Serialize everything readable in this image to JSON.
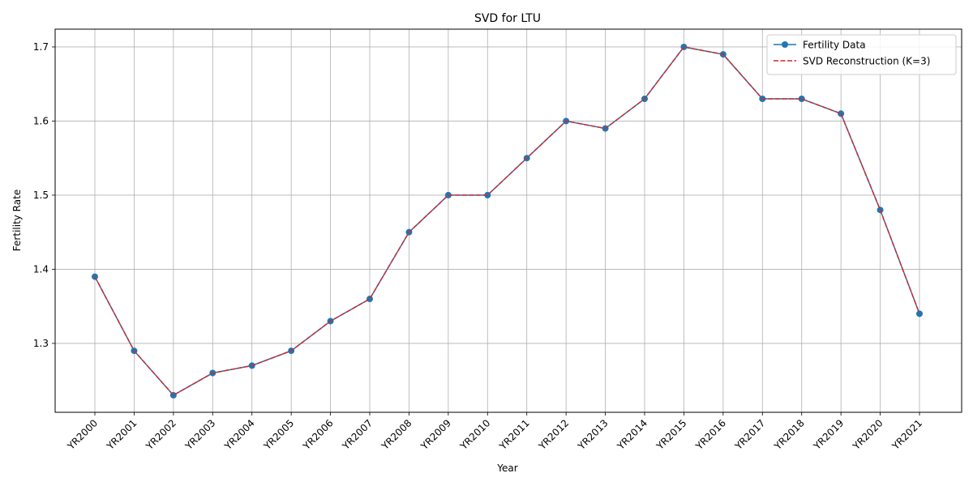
{
  "chart_data": {
    "type": "line",
    "title": "SVD for LTU",
    "xlabel": "Year",
    "ylabel": "Fertility Rate",
    "categories": [
      "YR2000",
      "YR2001",
      "YR2002",
      "YR2003",
      "YR2004",
      "YR2005",
      "YR2006",
      "YR2007",
      "YR2008",
      "YR2009",
      "YR2010",
      "YR2011",
      "YR2012",
      "YR2013",
      "YR2014",
      "YR2015",
      "YR2016",
      "YR2017",
      "YR2018",
      "YR2019",
      "YR2020",
      "YR2021"
    ],
    "ylim": [
      1.207,
      1.724
    ],
    "yticks": [
      1.3,
      1.4,
      1.5,
      1.6,
      1.7
    ],
    "ytick_labels": [
      "1.3",
      "1.4",
      "1.5",
      "1.6",
      "1.7"
    ],
    "grid": true,
    "legend_position": "top-right",
    "series": [
      {
        "name": "Fertility Data",
        "style": "solid-line-circle-markers",
        "color": "#1f77b4",
        "values": [
          1.39,
          1.29,
          1.23,
          1.26,
          1.27,
          1.29,
          1.33,
          1.36,
          1.45,
          1.5,
          1.5,
          1.55,
          1.6,
          1.59,
          1.63,
          1.7,
          1.69,
          1.63,
          1.63,
          1.61,
          1.48,
          1.34
        ]
      },
      {
        "name": "SVD Reconstruction (K=3)",
        "style": "dashed-line",
        "color": "#d62728",
        "values": [
          1.39,
          1.29,
          1.23,
          1.26,
          1.27,
          1.29,
          1.33,
          1.36,
          1.45,
          1.5,
          1.5,
          1.55,
          1.6,
          1.59,
          1.63,
          1.7,
          1.69,
          1.63,
          1.63,
          1.61,
          1.48,
          1.34
        ]
      }
    ]
  }
}
